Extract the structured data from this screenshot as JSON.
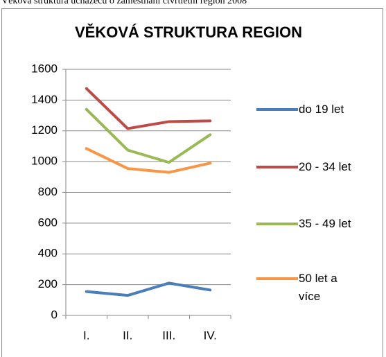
{
  "caption": "Věková struktura uchazečů o zaměstnání čtvrtletní region 2008",
  "chart_data": {
    "type": "line",
    "title": "VĚKOVÁ STRUKTURA REGION",
    "categories": [
      "I.",
      "II.",
      "III.",
      "IV."
    ],
    "series": [
      {
        "name": "do 19 let",
        "color": "#4a7ebb",
        "values": [
          155,
          130,
          210,
          165
        ]
      },
      {
        "name": "20 - 34 let",
        "color": "#be4b48",
        "values": [
          1475,
          1215,
          1260,
          1265
        ]
      },
      {
        "name": "35 - 49 let",
        "color": "#98b954",
        "values": [
          1340,
          1075,
          995,
          1175
        ]
      },
      {
        "name": "50 let a více",
        "color": "#f79646",
        "values": [
          1085,
          955,
          930,
          990
        ]
      }
    ],
    "ylim": [
      0,
      1600
    ],
    "yticks": [
      0,
      200,
      400,
      600,
      800,
      1000,
      1200,
      1400,
      1600
    ],
    "grid": true,
    "legend": "right"
  }
}
